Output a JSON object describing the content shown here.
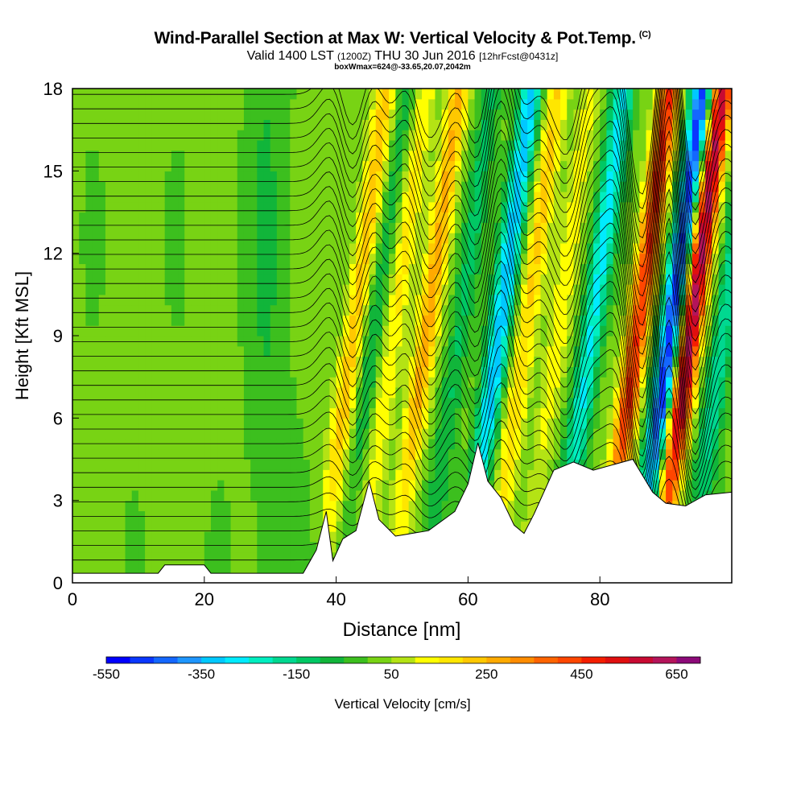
{
  "title": {
    "main": "Wind-Parallel Section at Max W: Vertical Velocity & Pot.Temp.",
    "copyright": "(C)",
    "valid_prefix": "Valid 1400 LST",
    "valid_utc": "(1200Z)",
    "valid_date": "THU 30 Jun 2016",
    "forecast": "[12hrFcst@0431z]",
    "box": "boxWmax=624@-33.65,20.07,2042m"
  },
  "chart_data": {
    "type": "heatmap",
    "xlabel": "Distance [nm]",
    "ylabel": "Height [Kft MSL]",
    "xlim": [
      0,
      100
    ],
    "ylim": [
      0,
      18
    ],
    "xticks": [
      0,
      20,
      40,
      60,
      80
    ],
    "yticks": [
      0,
      3,
      6,
      9,
      12,
      15,
      18
    ],
    "colorbar": {
      "label": "Vertical Velocity [cm/s]",
      "min": -550,
      "max": 700,
      "step": 50,
      "tick_labels": [
        "-550",
        "-350",
        "-150",
        "50",
        "250",
        "450",
        "650"
      ],
      "colors": [
        "#0000ff",
        "#0a37ff",
        "#1467ff",
        "#1e96ff",
        "#00c8ff",
        "#00ebff",
        "#00eec0",
        "#00d890",
        "#00c864",
        "#11b53a",
        "#3cbf1e",
        "#78d314",
        "#b4e314",
        "#ffff00",
        "#ffe600",
        "#ffc800",
        "#ffaa00",
        "#ff8c00",
        "#ff6400",
        "#ff4600",
        "#f41e00",
        "#e00f0f",
        "#c80a32",
        "#b4145a",
        "#8c0a78"
      ]
    },
    "vertical_velocity_bands": [
      {
        "x": 41,
        "w_cm_s": 220
      },
      {
        "x": 44,
        "w_cm_s": -100
      },
      {
        "x": 47,
        "w_cm_s": 150
      },
      {
        "x": 52,
        "w_cm_s": 260
      },
      {
        "x": 57,
        "w_cm_s": -120
      },
      {
        "x": 63,
        "w_cm_s": -350
      },
      {
        "x": 67,
        "w_cm_s": 200
      },
      {
        "x": 72,
        "w_cm_s": 120
      },
      {
        "x": 77,
        "w_cm_s": -280
      },
      {
        "x": 84,
        "w_cm_s": 450
      },
      {
        "x": 89,
        "w_cm_s": -500
      },
      {
        "x": 92,
        "w_cm_s": 620
      },
      {
        "x": 97,
        "w_cm_s": -200
      }
    ],
    "max_w_cm_s": 624,
    "terrain_kft": [
      {
        "x": 0,
        "h": 0.35
      },
      {
        "x": 13,
        "h": 0.35
      },
      {
        "x": 14,
        "h": 0.65
      },
      {
        "x": 20,
        "h": 0.65
      },
      {
        "x": 21,
        "h": 0.35
      },
      {
        "x": 35,
        "h": 0.35
      },
      {
        "x": 37,
        "h": 1.2
      },
      {
        "x": 38.5,
        "h": 2.6
      },
      {
        "x": 39.5,
        "h": 0.8
      },
      {
        "x": 41,
        "h": 1.6
      },
      {
        "x": 43,
        "h": 1.9
      },
      {
        "x": 45,
        "h": 3.7
      },
      {
        "x": 46.5,
        "h": 2.3
      },
      {
        "x": 49,
        "h": 1.7
      },
      {
        "x": 54,
        "h": 1.9
      },
      {
        "x": 58,
        "h": 2.6
      },
      {
        "x": 60,
        "h": 3.6
      },
      {
        "x": 61.5,
        "h": 5.1
      },
      {
        "x": 63,
        "h": 3.7
      },
      {
        "x": 65,
        "h": 3.1
      },
      {
        "x": 67,
        "h": 2.1
      },
      {
        "x": 68.5,
        "h": 1.8
      },
      {
        "x": 70,
        "h": 2.5
      },
      {
        "x": 73,
        "h": 4.1
      },
      {
        "x": 76,
        "h": 4.4
      },
      {
        "x": 79,
        "h": 4.1
      },
      {
        "x": 85,
        "h": 4.5
      },
      {
        "x": 88,
        "h": 3.3
      },
      {
        "x": 90,
        "h": 2.9
      },
      {
        "x": 93,
        "h": 2.8
      },
      {
        "x": 96,
        "h": 3.2
      },
      {
        "x": 100,
        "h": 3.3
      }
    ]
  }
}
